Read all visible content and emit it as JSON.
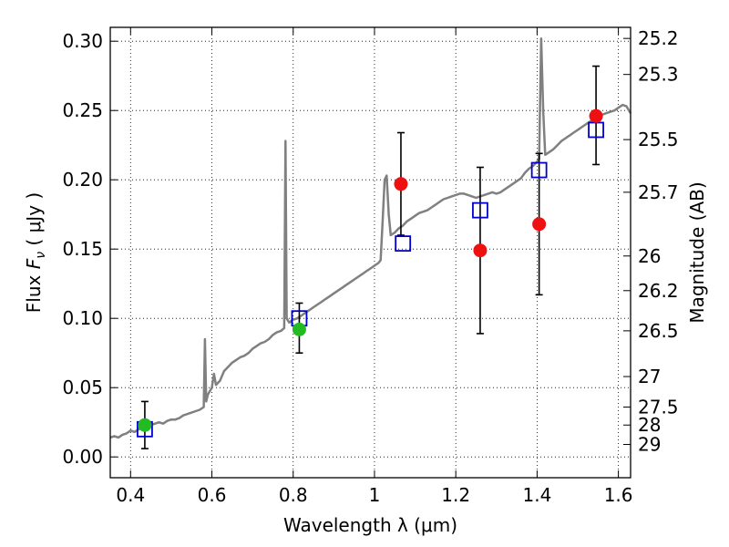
{
  "chart_data": {
    "type": "scatter",
    "xlabel": "Wavelength  λ (μm)",
    "ylabel": "Flux  Fν  ( μJy )",
    "ylabel_parts": {
      "prefix": "Flux  ",
      "symbol": "F",
      "subscript": "ν",
      "suffix": "  ( μJy )"
    },
    "y2label": "Magnitude (AB)",
    "xlim": [
      0.35,
      1.63
    ],
    "ylim": [
      -0.015,
      0.31
    ],
    "grid": true,
    "grid_style": "dotted",
    "x_ticks": [
      0.4,
      0.6,
      0.8,
      1.0,
      1.2,
      1.4,
      1.6
    ],
    "x_tick_labels": [
      "0.4",
      "0.6",
      "0.8",
      "1",
      "1.2",
      "1.4",
      "1.6"
    ],
    "y_ticks": [
      0.0,
      0.05,
      0.1,
      0.15,
      0.2,
      0.25,
      0.3
    ],
    "y_tick_labels": [
      "0.00",
      "0.05",
      "0.10",
      "0.15",
      "0.20",
      "0.25",
      "0.30"
    ],
    "mag_ticks": [
      {
        "label": "25.2",
        "flux": 0.302
      },
      {
        "label": "25.3",
        "flux": 0.276
      },
      {
        "label": "25.5",
        "flux": 0.229
      },
      {
        "label": "25.7",
        "flux": 0.191
      },
      {
        "label": "26",
        "flux": 0.145
      },
      {
        "label": "26.2",
        "flux": 0.12
      },
      {
        "label": "26.5",
        "flux": 0.091
      },
      {
        "label": "27",
        "flux": 0.058
      },
      {
        "label": "27.5",
        "flux": 0.036
      },
      {
        "label": "28",
        "flux": 0.023
      },
      {
        "label": "29",
        "flux": 0.009
      }
    ],
    "series": [
      {
        "kind": "line",
        "color": "#808080",
        "points": [
          [
            0.35,
            0.014
          ],
          [
            0.36,
            0.015
          ],
          [
            0.37,
            0.014
          ],
          [
            0.38,
            0.016
          ],
          [
            0.39,
            0.017
          ],
          [
            0.4,
            0.019
          ],
          [
            0.41,
            0.018
          ],
          [
            0.42,
            0.02
          ],
          [
            0.43,
            0.021
          ],
          [
            0.44,
            0.022
          ],
          [
            0.45,
            0.023
          ],
          [
            0.46,
            0.024
          ],
          [
            0.47,
            0.025
          ],
          [
            0.48,
            0.024
          ],
          [
            0.49,
            0.026
          ],
          [
            0.5,
            0.027
          ],
          [
            0.51,
            0.027
          ],
          [
            0.52,
            0.028
          ],
          [
            0.53,
            0.03
          ],
          [
            0.54,
            0.031
          ],
          [
            0.55,
            0.032
          ],
          [
            0.56,
            0.033
          ],
          [
            0.57,
            0.034
          ],
          [
            0.575,
            0.035
          ],
          [
            0.58,
            0.036
          ],
          [
            0.583,
            0.085
          ],
          [
            0.586,
            0.04
          ],
          [
            0.59,
            0.045
          ],
          [
            0.6,
            0.05
          ],
          [
            0.605,
            0.06
          ],
          [
            0.61,
            0.052
          ],
          [
            0.62,
            0.055
          ],
          [
            0.63,
            0.062
          ],
          [
            0.64,
            0.065
          ],
          [
            0.65,
            0.068
          ],
          [
            0.66,
            0.07
          ],
          [
            0.67,
            0.072
          ],
          [
            0.68,
            0.073
          ],
          [
            0.69,
            0.075
          ],
          [
            0.7,
            0.078
          ],
          [
            0.71,
            0.08
          ],
          [
            0.72,
            0.082
          ],
          [
            0.73,
            0.083
          ],
          [
            0.74,
            0.085
          ],
          [
            0.75,
            0.088
          ],
          [
            0.76,
            0.09
          ],
          [
            0.77,
            0.091
          ],
          [
            0.778,
            0.093
          ],
          [
            0.781,
            0.228
          ],
          [
            0.784,
            0.1
          ],
          [
            0.79,
            0.097
          ],
          [
            0.8,
            0.099
          ],
          [
            0.81,
            0.1
          ],
          [
            0.82,
            0.102
          ],
          [
            0.83,
            0.104
          ],
          [
            0.84,
            0.106
          ],
          [
            0.85,
            0.108
          ],
          [
            0.86,
            0.11
          ],
          [
            0.87,
            0.112
          ],
          [
            0.88,
            0.114
          ],
          [
            0.89,
            0.116
          ],
          [
            0.9,
            0.118
          ],
          [
            0.91,
            0.12
          ],
          [
            0.92,
            0.122
          ],
          [
            0.93,
            0.124
          ],
          [
            0.94,
            0.126
          ],
          [
            0.95,
            0.128
          ],
          [
            0.96,
            0.13
          ],
          [
            0.97,
            0.132
          ],
          [
            0.98,
            0.134
          ],
          [
            0.99,
            0.136
          ],
          [
            1.0,
            0.138
          ],
          [
            1.01,
            0.14
          ],
          [
            1.015,
            0.142
          ],
          [
            1.02,
            0.17
          ],
          [
            1.025,
            0.2
          ],
          [
            1.03,
            0.203
          ],
          [
            1.035,
            0.175
          ],
          [
            1.04,
            0.16
          ],
          [
            1.05,
            0.162
          ],
          [
            1.06,
            0.165
          ],
          [
            1.07,
            0.167
          ],
          [
            1.08,
            0.17
          ],
          [
            1.09,
            0.172
          ],
          [
            1.1,
            0.174
          ],
          [
            1.11,
            0.176
          ],
          [
            1.12,
            0.177
          ],
          [
            1.13,
            0.178
          ],
          [
            1.14,
            0.18
          ],
          [
            1.15,
            0.182
          ],
          [
            1.16,
            0.184
          ],
          [
            1.17,
            0.186
          ],
          [
            1.18,
            0.187
          ],
          [
            1.19,
            0.188
          ],
          [
            1.2,
            0.189
          ],
          [
            1.21,
            0.19
          ],
          [
            1.22,
            0.19
          ],
          [
            1.23,
            0.189
          ],
          [
            1.24,
            0.188
          ],
          [
            1.25,
            0.187
          ],
          [
            1.26,
            0.188
          ],
          [
            1.27,
            0.189
          ],
          [
            1.28,
            0.19
          ],
          [
            1.29,
            0.191
          ],
          [
            1.3,
            0.19
          ],
          [
            1.31,
            0.191
          ],
          [
            1.32,
            0.193
          ],
          [
            1.33,
            0.195
          ],
          [
            1.34,
            0.197
          ],
          [
            1.35,
            0.199
          ],
          [
            1.36,
            0.201
          ],
          [
            1.37,
            0.205
          ],
          [
            1.38,
            0.208
          ],
          [
            1.39,
            0.21
          ],
          [
            1.4,
            0.213
          ],
          [
            1.405,
            0.215
          ],
          [
            1.41,
            0.302
          ],
          [
            1.415,
            0.25
          ],
          [
            1.42,
            0.218
          ],
          [
            1.43,
            0.22
          ],
          [
            1.44,
            0.222
          ],
          [
            1.45,
            0.225
          ],
          [
            1.46,
            0.228
          ],
          [
            1.47,
            0.23
          ],
          [
            1.48,
            0.232
          ],
          [
            1.49,
            0.234
          ],
          [
            1.5,
            0.236
          ],
          [
            1.51,
            0.238
          ],
          [
            1.52,
            0.24
          ],
          [
            1.53,
            0.242
          ],
          [
            1.54,
            0.244
          ],
          [
            1.55,
            0.246
          ],
          [
            1.56,
            0.247
          ],
          [
            1.57,
            0.248
          ],
          [
            1.58,
            0.249
          ],
          [
            1.59,
            0.25
          ],
          [
            1.6,
            0.252
          ],
          [
            1.61,
            0.254
          ],
          [
            1.62,
            0.253
          ],
          [
            1.63,
            0.248
          ]
        ]
      },
      {
        "kind": "squares",
        "color": "#0000cc",
        "points": [
          [
            0.435,
            0.02
          ],
          [
            0.815,
            0.1
          ],
          [
            1.07,
            0.154
          ],
          [
            1.26,
            0.178
          ],
          [
            1.405,
            0.207
          ],
          [
            1.545,
            0.236
          ]
        ]
      },
      {
        "kind": "errorbar",
        "color": "#000000",
        "points": [
          {
            "x": 0.435,
            "ylo": 0.006,
            "yhi": 0.04
          },
          {
            "x": 0.815,
            "ylo": 0.075,
            "yhi": 0.111
          },
          {
            "x": 1.065,
            "ylo": 0.16,
            "yhi": 0.234
          },
          {
            "x": 1.26,
            "ylo": 0.089,
            "yhi": 0.209
          },
          {
            "x": 1.405,
            "ylo": 0.117,
            "yhi": 0.219
          },
          {
            "x": 1.545,
            "ylo": 0.211,
            "yhi": 0.282
          }
        ]
      },
      {
        "kind": "dots",
        "color": "#22bb22",
        "points": [
          [
            0.435,
            0.023
          ],
          [
            0.815,
            0.092
          ]
        ]
      },
      {
        "kind": "dots",
        "color": "#ee1111",
        "points": [
          [
            1.065,
            0.197
          ],
          [
            1.26,
            0.149
          ],
          [
            1.405,
            0.168
          ],
          [
            1.545,
            0.246
          ]
        ]
      }
    ]
  }
}
